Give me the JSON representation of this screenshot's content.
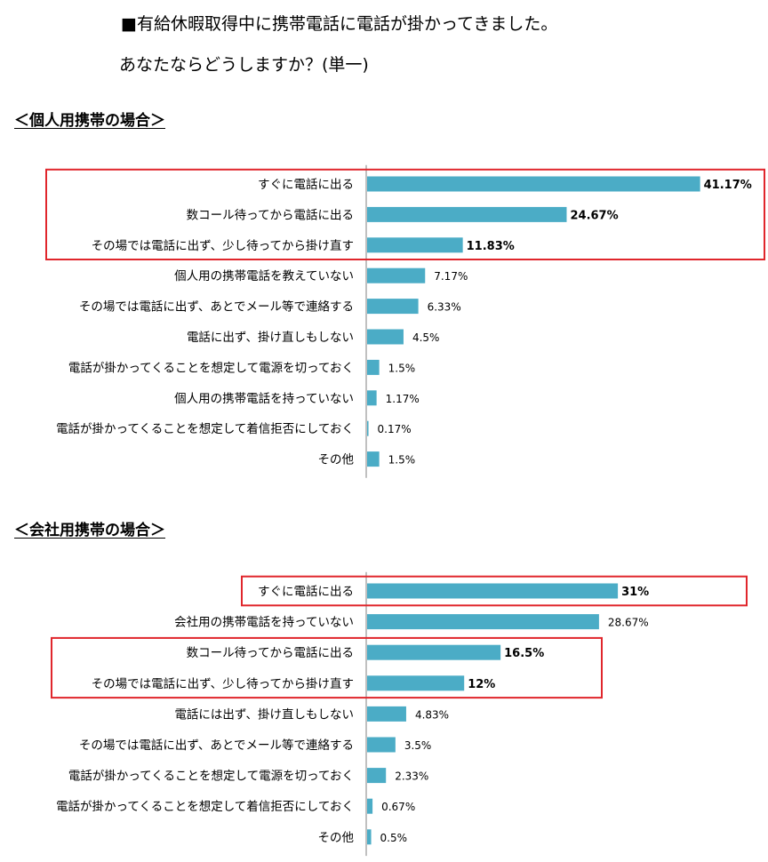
{
  "question": {
    "line1": "■有給休暇取得中に携帯電話に電話が掛かってきました。",
    "line2": "あなたならどうしますか？(単一)"
  },
  "colors": {
    "bar": "#4BACC6",
    "highlight": "#E0262C",
    "axis": "#808080"
  },
  "chart_data": [
    {
      "type": "bar",
      "orientation": "horizontal",
      "title": "＜個人用携帯の場合＞",
      "categories": [
        "すぐに電話に出る",
        "数コール待ってから電話に出る",
        "その場では電話に出ず、少し待ってから掛け直す",
        "個人用の携帯電話を教えていない",
        "その場では電話に出ず、あとでメール等で連絡する",
        "電話に出ず、掛け直しもしない",
        "電話が掛かってくることを想定して電源を切っておく",
        "個人用の携帯電話を持っていない",
        "電話が掛かってくることを想定して着信拒否にしておく",
        "その他"
      ],
      "values": [
        41.17,
        24.67,
        11.83,
        7.17,
        6.33,
        4.5,
        1.5,
        1.17,
        0.17,
        1.5
      ],
      "labels": [
        "41.17%",
        "24.67%",
        "11.83%",
        "7.17%",
        "6.33%",
        "4.5%",
        "1.5%",
        "1.17%",
        "0.17%",
        "1.5%"
      ],
      "highlighted_groups": [
        [
          0,
          1,
          2
        ]
      ],
      "unit": "%"
    },
    {
      "type": "bar",
      "orientation": "horizontal",
      "title": "＜会社用携帯の場合＞",
      "categories": [
        "すぐに電話に出る",
        "会社用の携帯電話を持っていない",
        "数コール待ってから電話に出る",
        "その場では電話に出ず、少し待ってから掛け直す",
        "電話には出ず、掛け直しもしない",
        "その場では電話に出ず、あとでメール等で連絡する",
        "電話が掛かってくることを想定して電源を切っておく",
        "電話が掛かってくることを想定して着信拒否にしておく",
        "その他"
      ],
      "values": [
        31,
        28.67,
        16.5,
        12,
        4.83,
        3.5,
        2.33,
        0.67,
        0.5
      ],
      "labels": [
        "31%",
        "28.67%",
        "16.5%",
        "12%",
        "4.83%",
        "3.5%",
        "2.33%",
        "0.67%",
        "0.5%"
      ],
      "highlighted_groups": [
        [
          0
        ],
        [
          2,
          3
        ]
      ],
      "unit": "%"
    }
  ]
}
